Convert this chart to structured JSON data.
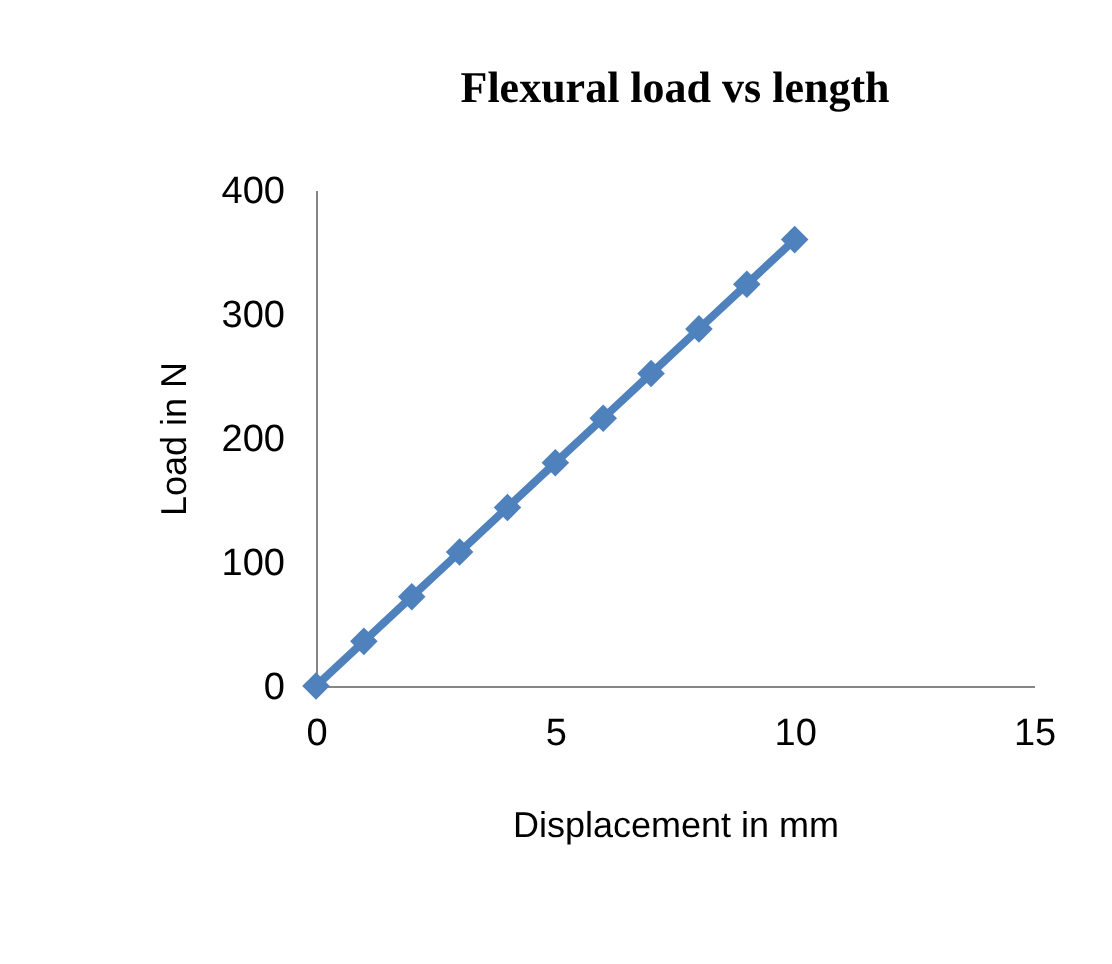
{
  "chart_data": {
    "type": "line",
    "title": "Flexural load vs length",
    "xlabel": "Displacement in mm",
    "ylabel": "Load in N",
    "x": [
      0,
      1,
      2,
      3,
      4,
      5,
      6,
      7,
      8,
      9,
      10
    ],
    "series": [
      {
        "color": "#4f81bd",
        "values": [
          0,
          36,
          72,
          108,
          144,
          180,
          216,
          252,
          288,
          324,
          360
        ]
      }
    ],
    "xlim": [
      0,
      15
    ],
    "xticks": [
      0,
      5,
      10,
      15
    ],
    "ylim": [
      0,
      400
    ],
    "yticks": [
      0,
      100,
      200,
      300,
      400
    ],
    "grid": false,
    "legend": false,
    "marker": "diamond",
    "line_style": "solid"
  }
}
